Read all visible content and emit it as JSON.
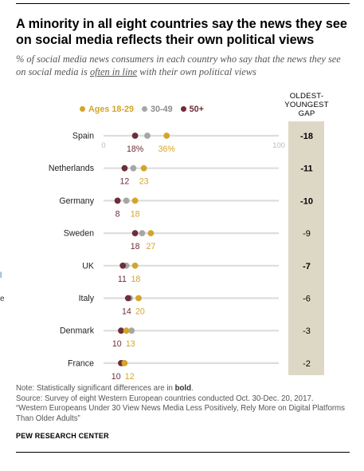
{
  "title": "A minority in all eight countries say the news they see on social media reflects their own political views",
  "subtitle_before": "% of social media news consumers in each country who say that the news they see on social media is ",
  "subtitle_underlined": "often in line",
  "subtitle_after": " with their own political views",
  "gap_header": [
    "OLDEST-",
    "YOUNGEST",
    "GAP"
  ],
  "legend": [
    {
      "label": "Ages 18-29",
      "color": "#d4a52a"
    },
    {
      "label": "30-49",
      "color": "#a6a6a6"
    },
    {
      "label": "50+",
      "color": "#6e2d3a"
    }
  ],
  "note_prefix": "Note: Statistically significant differences are in ",
  "note_bold": "bold",
  "note_suffix": ".",
  "source": "Source: Survey of eight Western European countries conducted Oct. 30-Dec. 20, 2017.",
  "report": "“Western Europeans Under 30 View News Media Less Positively, Rely More on Digital Platforms Than Older Adults”",
  "credit": "PEW RESEARCH CENTER",
  "edge_marks": [
    "l",
    "e"
  ],
  "chart_data": {
    "type": "dot",
    "xlim": [
      0,
      100
    ],
    "axis_ticks": [
      "0",
      "100"
    ],
    "label_suffix_first_row": "%",
    "colors": {
      "ages_18_29": "#d4a52a",
      "ages_30_49": "#a6a6a6",
      "ages_50_plus": "#6e2d3a"
    },
    "categories": [
      "Spain",
      "Netherlands",
      "Germany",
      "Sweden",
      "UK",
      "Italy",
      "Denmark",
      "France"
    ],
    "series": [
      {
        "name": "Ages 18-29",
        "values": [
          36,
          23,
          18,
          27,
          18,
          20,
          13,
          12
        ]
      },
      {
        "name": "30-49",
        "values": [
          25,
          17,
          13,
          22,
          13,
          15,
          16,
          11
        ]
      },
      {
        "name": "50+",
        "values": [
          18,
          12,
          8,
          18,
          11,
          14,
          10,
          10
        ]
      }
    ],
    "gap": [
      "-18",
      "-11",
      "-10",
      "-9",
      "-7",
      "-6",
      "-3",
      "-2"
    ],
    "gap_bold": [
      true,
      true,
      true,
      false,
      true,
      false,
      false,
      false
    ]
  }
}
